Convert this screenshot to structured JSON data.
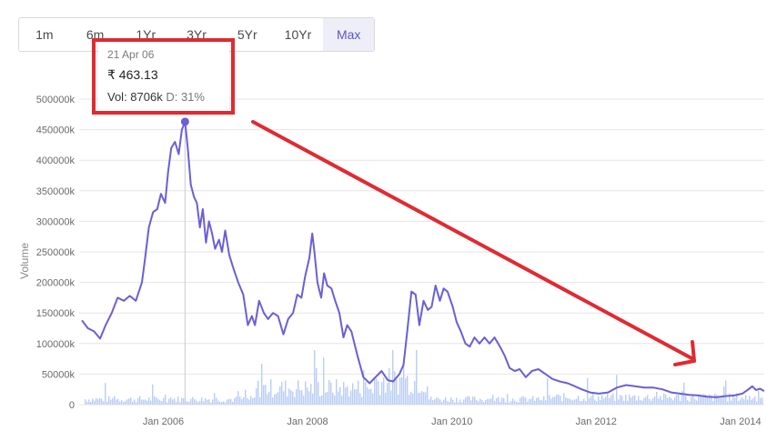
{
  "range_tabs": [
    {
      "label": "1m",
      "active": false
    },
    {
      "label": "6m",
      "active": false
    },
    {
      "label": "1Yr",
      "active": false
    },
    {
      "label": "3Yr",
      "active": false
    },
    {
      "label": "5Yr",
      "active": false
    },
    {
      "label": "10Yr",
      "active": false
    },
    {
      "label": "Max",
      "active": true
    }
  ],
  "tooltip": {
    "date": "21 Apr 06",
    "price": "₹ 463.13",
    "vol_label": "Vol: 8706k",
    "d_label": "D: 31%"
  },
  "colors": {
    "price_line": "#6a5fd6",
    "volume_bars": "#b9cdf5",
    "annotation": "#e02a31",
    "grid": "#e6e6ea",
    "active_tab_bg": "#eeeef8"
  },
  "chart_data": {
    "type": "line",
    "ylabel": "Volume",
    "ylim": [
      0,
      500000
    ],
    "yticks": [
      {
        "value": 0,
        "label": "0"
      },
      {
        "value": 50000,
        "label": "50000k"
      },
      {
        "value": 100000,
        "label": "100000k"
      },
      {
        "value": 150000,
        "label": "150000k"
      },
      {
        "value": 200000,
        "label": "200000k"
      },
      {
        "value": 250000,
        "label": "250000k"
      },
      {
        "value": 300000,
        "label": "300000k"
      },
      {
        "value": 350000,
        "label": "350000k"
      },
      {
        "value": 400000,
        "label": "400000k"
      },
      {
        "value": 450000,
        "label": "450000k"
      },
      {
        "value": 500000,
        "label": "500000k"
      }
    ],
    "xlim": [
      "2004-11-01",
      "2014-05-01"
    ],
    "xticks": [
      {
        "value": "2006-01-01",
        "label": "Jan 2006"
      },
      {
        "value": "2008-01-01",
        "label": "Jan 2008"
      },
      {
        "value": "2010-01-01",
        "label": "Jan 2010"
      },
      {
        "value": "2012-01-01",
        "label": "Jan 2012"
      },
      {
        "value": "2014-01-01",
        "label": "Jan 2014"
      }
    ],
    "highlight": {
      "date": "2006-04-21",
      "y": 463000
    },
    "grid": true,
    "series": [
      {
        "points": [
          [
            "2004-11-15",
            138000
          ],
          [
            "2004-12-15",
            125000
          ],
          [
            "2005-01-15",
            120000
          ],
          [
            "2005-02-15",
            108000
          ],
          [
            "2005-03-15",
            130000
          ],
          [
            "2005-04-15",
            150000
          ],
          [
            "2005-05-15",
            175000
          ],
          [
            "2005-06-15",
            170000
          ],
          [
            "2005-07-15",
            178000
          ],
          [
            "2005-08-15",
            170000
          ],
          [
            "2005-09-15",
            200000
          ],
          [
            "2005-10-01",
            240000
          ],
          [
            "2005-10-20",
            290000
          ],
          [
            "2005-11-10",
            315000
          ],
          [
            "2005-12-01",
            320000
          ],
          [
            "2005-12-20",
            345000
          ],
          [
            "2006-01-10",
            330000
          ],
          [
            "2006-01-25",
            380000
          ],
          [
            "2006-02-10",
            420000
          ],
          [
            "2006-03-01",
            430000
          ],
          [
            "2006-03-20",
            410000
          ],
          [
            "2006-04-05",
            450000
          ],
          [
            "2006-04-21",
            463000
          ],
          [
            "2006-05-05",
            420000
          ],
          [
            "2006-05-20",
            360000
          ],
          [
            "2006-06-05",
            340000
          ],
          [
            "2006-06-20",
            330000
          ],
          [
            "2006-07-05",
            290000
          ],
          [
            "2006-07-20",
            320000
          ],
          [
            "2006-08-05",
            265000
          ],
          [
            "2006-08-20",
            300000
          ],
          [
            "2006-09-05",
            280000
          ],
          [
            "2006-09-20",
            255000
          ],
          [
            "2006-10-10",
            270000
          ],
          [
            "2006-10-25",
            250000
          ],
          [
            "2006-11-10",
            285000
          ],
          [
            "2006-12-01",
            245000
          ],
          [
            "2006-12-20",
            225000
          ],
          [
            "2007-01-15",
            200000
          ],
          [
            "2007-02-10",
            180000
          ],
          [
            "2007-03-05",
            130000
          ],
          [
            "2007-03-25",
            145000
          ],
          [
            "2007-04-10",
            130000
          ],
          [
            "2007-05-01",
            170000
          ],
          [
            "2007-05-25",
            150000
          ],
          [
            "2007-06-15",
            140000
          ],
          [
            "2007-07-10",
            150000
          ],
          [
            "2007-08-05",
            145000
          ],
          [
            "2007-09-01",
            115000
          ],
          [
            "2007-09-25",
            140000
          ],
          [
            "2007-10-20",
            150000
          ],
          [
            "2007-11-10",
            180000
          ],
          [
            "2007-12-01",
            175000
          ],
          [
            "2007-12-20",
            210000
          ],
          [
            "2008-01-10",
            240000
          ],
          [
            "2008-01-25",
            280000
          ],
          [
            "2008-02-05",
            250000
          ],
          [
            "2008-02-20",
            200000
          ],
          [
            "2008-03-10",
            175000
          ],
          [
            "2008-03-25",
            215000
          ],
          [
            "2008-04-10",
            195000
          ],
          [
            "2008-05-01",
            190000
          ],
          [
            "2008-05-20",
            170000
          ],
          [
            "2008-06-10",
            150000
          ],
          [
            "2008-07-01",
            110000
          ],
          [
            "2008-07-20",
            130000
          ],
          [
            "2008-08-10",
            120000
          ],
          [
            "2008-09-10",
            80000
          ],
          [
            "2008-10-10",
            45000
          ],
          [
            "2008-11-10",
            35000
          ],
          [
            "2008-12-10",
            45000
          ],
          [
            "2009-01-10",
            55000
          ],
          [
            "2009-02-10",
            40000
          ],
          [
            "2009-03-10",
            38000
          ],
          [
            "2009-04-10",
            50000
          ],
          [
            "2009-05-01",
            65000
          ],
          [
            "2009-05-20",
            120000
          ],
          [
            "2009-06-10",
            185000
          ],
          [
            "2009-07-01",
            180000
          ],
          [
            "2009-07-20",
            130000
          ],
          [
            "2009-08-10",
            170000
          ],
          [
            "2009-09-01",
            155000
          ],
          [
            "2009-09-20",
            160000
          ],
          [
            "2009-10-10",
            195000
          ],
          [
            "2009-11-01",
            170000
          ],
          [
            "2009-11-20",
            190000
          ],
          [
            "2009-12-10",
            185000
          ],
          [
            "2010-01-05",
            160000
          ],
          [
            "2010-01-25",
            135000
          ],
          [
            "2010-02-15",
            120000
          ],
          [
            "2010-03-10",
            100000
          ],
          [
            "2010-04-01",
            95000
          ],
          [
            "2010-04-25",
            110000
          ],
          [
            "2010-05-20",
            100000
          ],
          [
            "2010-06-15",
            110000
          ],
          [
            "2010-07-10",
            100000
          ],
          [
            "2010-08-05",
            110000
          ],
          [
            "2010-09-01",
            95000
          ],
          [
            "2010-09-25",
            80000
          ],
          [
            "2010-10-20",
            60000
          ],
          [
            "2010-11-15",
            55000
          ],
          [
            "2010-12-10",
            58000
          ],
          [
            "2011-01-10",
            45000
          ],
          [
            "2011-02-10",
            55000
          ],
          [
            "2011-03-15",
            58000
          ],
          [
            "2011-04-20",
            50000
          ],
          [
            "2011-05-25",
            42000
          ],
          [
            "2011-07-01",
            38000
          ],
          [
            "2011-08-10",
            35000
          ],
          [
            "2011-09-15",
            30000
          ],
          [
            "2011-10-20",
            25000
          ],
          [
            "2011-12-01",
            20000
          ],
          [
            "2012-01-15",
            18000
          ],
          [
            "2012-03-01",
            20000
          ],
          [
            "2012-04-15",
            28000
          ],
          [
            "2012-06-01",
            32000
          ],
          [
            "2012-07-15",
            30000
          ],
          [
            "2012-09-01",
            28000
          ],
          [
            "2012-10-15",
            28000
          ],
          [
            "2012-12-01",
            25000
          ],
          [
            "2013-01-15",
            20000
          ],
          [
            "2013-03-01",
            18000
          ],
          [
            "2013-04-15",
            16000
          ],
          [
            "2013-06-01",
            15000
          ],
          [
            "2013-07-15",
            13000
          ],
          [
            "2013-09-01",
            12000
          ],
          [
            "2013-10-15",
            14000
          ],
          [
            "2013-12-01",
            15000
          ],
          [
            "2014-01-10",
            18000
          ],
          [
            "2014-02-10",
            25000
          ],
          [
            "2014-03-01",
            30000
          ],
          [
            "2014-03-20",
            24000
          ],
          [
            "2014-04-10",
            26000
          ],
          [
            "2014-04-30",
            22000
          ]
        ]
      }
    ]
  }
}
